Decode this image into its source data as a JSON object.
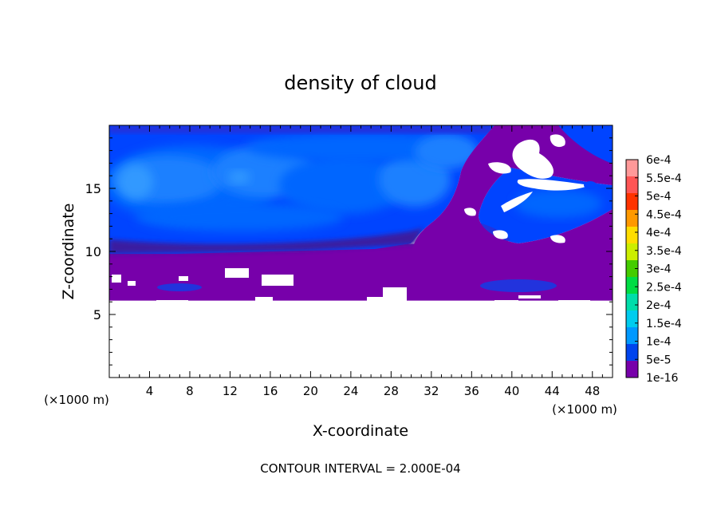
{
  "chart_data": {
    "type": "heatmap",
    "title": "density of cloud",
    "xlabel": "X-coordinate",
    "ylabel": "Z-coordinate",
    "x_unit": "(×1000 m)",
    "y_unit": "(×1000 m)",
    "xlim": [
      0,
      50
    ],
    "ylim": [
      0,
      20
    ],
    "x_ticks": [
      4,
      8,
      12,
      16,
      20,
      24,
      28,
      32,
      36,
      40,
      44,
      48
    ],
    "y_ticks": [
      5,
      10,
      15
    ],
    "footnote": "CONTOUR INTERVAL = 2.000E-04",
    "colorbar": {
      "labels": [
        "6e-4",
        "5.5e-4",
        "5e-4",
        "4.5e-4",
        "4e-4",
        "3.5e-4",
        "3e-4",
        "2.5e-4",
        "2e-4",
        "1.5e-4",
        "1e-4",
        "5e-5",
        "1e-16"
      ],
      "colors": [
        "#ff9999",
        "#ff5555",
        "#ff3300",
        "#ff9900",
        "#ffdd00",
        "#ccee00",
        "#44cc00",
        "#00dd44",
        "#00ddaa",
        "#00ccee",
        "#0099ff",
        "#0044ee",
        "#7700aa"
      ]
    },
    "field_colors": {
      "empty": "#ffffff",
      "level_1": "#7700aa",
      "level_2": "#2233dd",
      "level_3": "#0044ff",
      "level_4": "#0066ff",
      "level_5": "#1a80ff",
      "level_6": "#3399ff",
      "dark_band": "#3a1ea0"
    },
    "regions": [
      {
        "name": "purple-low-cloud",
        "value_level": 1,
        "z_range": [
          6,
          10
        ]
      },
      {
        "name": "blue-upper-cloud",
        "value_level": 3,
        "z_range": [
          10,
          19.7
        ]
      }
    ]
  }
}
